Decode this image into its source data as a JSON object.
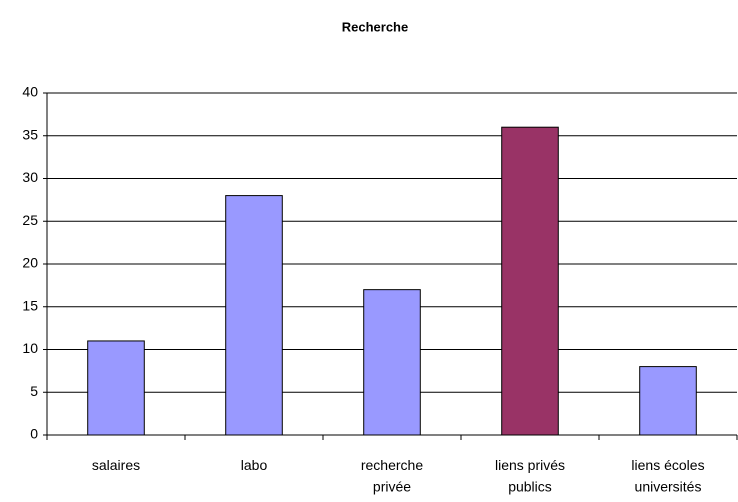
{
  "chart_data": {
    "type": "bar",
    "title": "Recherche",
    "categories": [
      "salaires",
      "labo",
      "recherche\nprivée",
      "liens privés\npublics",
      "liens écoles\nuniversités"
    ],
    "values": [
      11,
      28,
      17,
      36,
      8
    ],
    "colors": [
      "#9999ff",
      "#9999ff",
      "#9999ff",
      "#993366",
      "#9999ff"
    ],
    "ylim": [
      0,
      40
    ],
    "yticks": [
      0,
      5,
      10,
      15,
      20,
      25,
      30,
      35,
      40
    ],
    "grid": true
  }
}
